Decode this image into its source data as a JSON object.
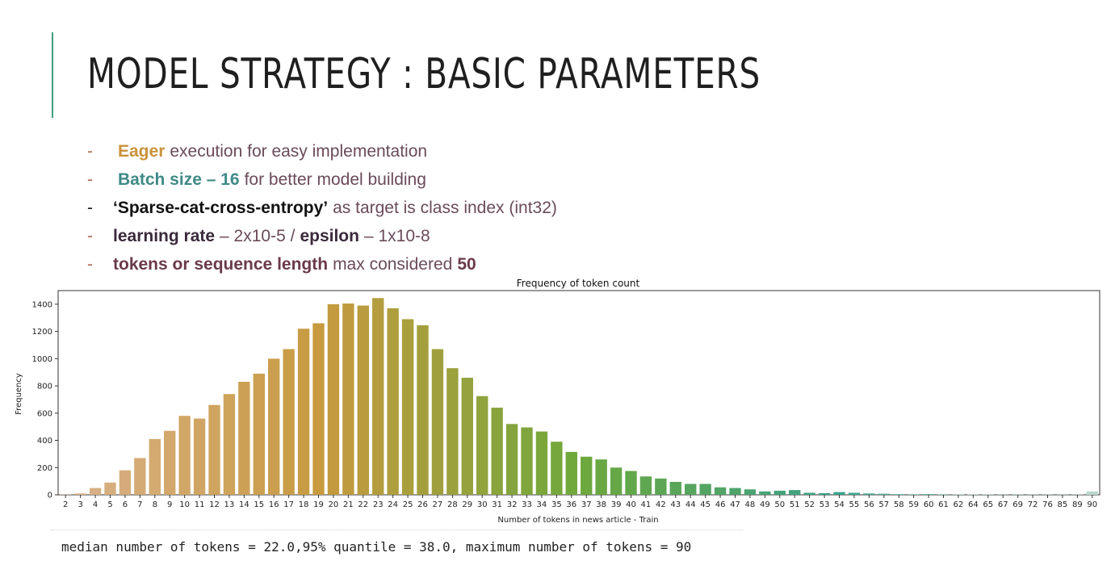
{
  "slide": {
    "title": "MODEL STRATEGY : BASIC PARAMETERS",
    "bullets": [
      {
        "dash": "-",
        "key": "Eager",
        "text": "execution for easy implementation"
      },
      {
        "dash": "-",
        "key": "Batch size – 16",
        "text": "for better model building"
      },
      {
        "dash": "-",
        "key": "‘Sparse-cat-cross-entropy’",
        "text": "as target is class index (int32)"
      },
      {
        "dash": "-",
        "key1": "learning rate",
        "mid": "– 2x10-5 /",
        "key2": "epsilon",
        "tail": "– 1x10-8"
      },
      {
        "dash": "-",
        "key": "tokens or sequence length",
        "mid": "max considered",
        "num": "50"
      }
    ]
  },
  "chart_data": {
    "type": "bar",
    "title": "Frequency of token count",
    "xlabel": "Number of tokens in news article - Train",
    "ylabel": "Frequency",
    "ylim": [
      0,
      1500
    ],
    "yticks": [
      0,
      200,
      400,
      600,
      800,
      1000,
      1200,
      1400
    ],
    "categories": [
      "2",
      "3",
      "4",
      "5",
      "6",
      "7",
      "8",
      "9",
      "10",
      "11",
      "12",
      "13",
      "14",
      "15",
      "16",
      "17",
      "18",
      "19",
      "20",
      "21",
      "22",
      "23",
      "24",
      "25",
      "26",
      "27",
      "28",
      "29",
      "30",
      "31",
      "32",
      "33",
      "34",
      "35",
      "36",
      "37",
      "38",
      "39",
      "40",
      "41",
      "42",
      "43",
      "44",
      "45",
      "46",
      "47",
      "48",
      "49",
      "50",
      "51",
      "52",
      "53",
      "54",
      "55",
      "56",
      "57",
      "58",
      "59",
      "60",
      "61",
      "62",
      "64",
      "65",
      "67",
      "69",
      "72",
      "76",
      "85",
      "89",
      "90"
    ],
    "values": [
      2,
      10,
      50,
      90,
      180,
      270,
      410,
      470,
      580,
      560,
      660,
      740,
      830,
      890,
      1000,
      1070,
      1220,
      1260,
      1400,
      1405,
      1390,
      1445,
      1370,
      1290,
      1245,
      1070,
      930,
      860,
      725,
      640,
      520,
      495,
      465,
      390,
      315,
      280,
      260,
      200,
      175,
      135,
      120,
      95,
      80,
      80,
      55,
      50,
      40,
      25,
      30,
      35,
      15,
      12,
      20,
      15,
      10,
      8,
      5,
      4,
      6,
      4,
      3,
      3,
      3,
      2,
      4,
      2,
      2,
      2,
      2,
      25
    ],
    "colors": {
      "start": "#d9b28b",
      "mid_warm": "#c79a3e",
      "mid_green": "#6ea83c",
      "end_teal": "#3aa28a",
      "end_light": "#b8d8cc"
    }
  },
  "stats": {
    "text": "median number of tokens = 22.0,95% quantile = 38.0, maximum number of tokens = 90"
  }
}
